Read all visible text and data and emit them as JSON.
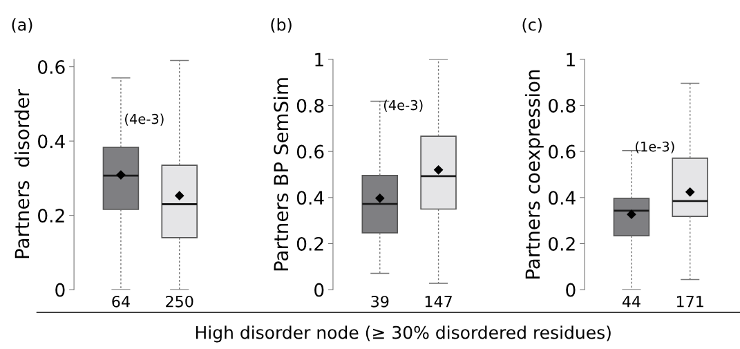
{
  "chart_data": [
    {
      "type": "box",
      "title": "(a)",
      "ylabel": "Partners  disorder",
      "categories": [
        "64",
        "250"
      ],
      "colors": [
        "#7f7f82",
        "#e5e5e7"
      ],
      "ylim": [
        0,
        0.62
      ],
      "yticks": [
        0,
        0.2,
        0.4,
        0.6
      ],
      "annotations": [
        "(4e-3)"
      ],
      "boxes": [
        {
          "low": 0,
          "q1": 0.216,
          "median": 0.307,
          "q3": 0.383,
          "high": 0.57,
          "mean": 0.309
        },
        {
          "low": 0,
          "q1": 0.14,
          "median": 0.23,
          "q3": 0.335,
          "high": 0.617,
          "mean": 0.253
        }
      ]
    },
    {
      "type": "box",
      "title": "(b)",
      "ylabel": "Partners BP SemSim",
      "xlabel": "High disorder node (≥ 30% disordered residues)",
      "categories": [
        "39",
        "147"
      ],
      "colors": [
        "#7f7f82",
        "#e5e5e7"
      ],
      "ylim": [
        0,
        1
      ],
      "yticks": [
        0,
        0.2,
        0.4,
        0.6,
        0.8,
        1
      ],
      "annotations": [
        "(4e-3)"
      ],
      "boxes": [
        {
          "low": 0.071,
          "q1": 0.247,
          "median": 0.372,
          "q3": 0.496,
          "high": 0.818,
          "mean": 0.397
        },
        {
          "low": 0.028,
          "q1": 0.35,
          "median": 0.493,
          "q3": 0.666,
          "high": 1.0,
          "mean": 0.52
        }
      ]
    },
    {
      "type": "box",
      "title": "(c)",
      "ylabel": "Partners coexpression",
      "categories": [
        "44",
        "171"
      ],
      "colors": [
        "#7f7f82",
        "#e5e5e7"
      ],
      "ylim": [
        0,
        1
      ],
      "yticks": [
        0,
        0.2,
        0.4,
        0.6,
        0.8,
        1
      ],
      "annotations": [
        "(1e-3)"
      ],
      "boxes": [
        {
          "low": 0,
          "q1": 0.234,
          "median": 0.343,
          "q3": 0.396,
          "high": 0.604,
          "mean": 0.327
        },
        {
          "low": 0.044,
          "q1": 0.318,
          "median": 0.385,
          "q3": 0.571,
          "high": 0.896,
          "mean": 0.424
        }
      ]
    }
  ]
}
